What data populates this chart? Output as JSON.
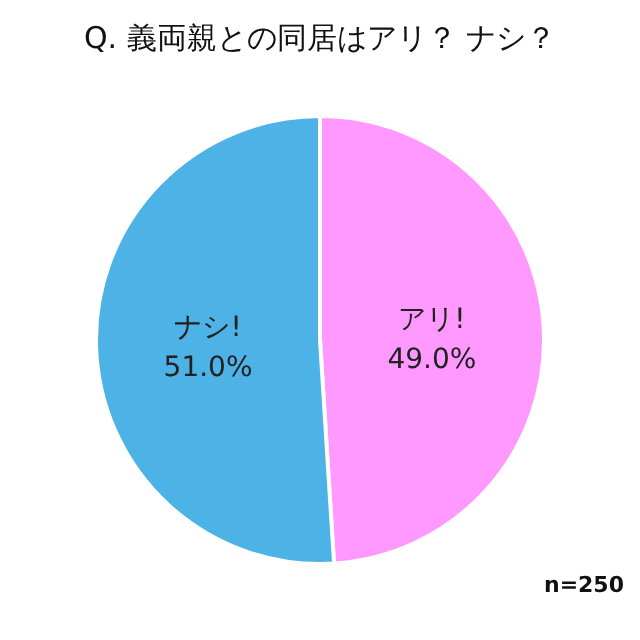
{
  "chart_data": {
    "type": "pie",
    "title": "Q. 義両親との同居はアリ？ ナシ？",
    "categories": [
      "アリ!",
      "ナシ!"
    ],
    "values": [
      49.0,
      51.0
    ],
    "value_labels": [
      "49.0%",
      "51.0%"
    ],
    "colors": [
      "#ff99ff",
      "#4db3e6"
    ],
    "annotations": [
      "n=250"
    ]
  }
}
